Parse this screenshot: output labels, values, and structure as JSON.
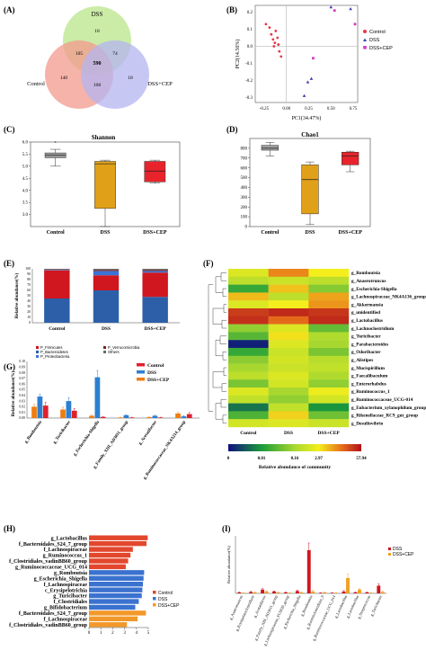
{
  "panels": {
    "A": {
      "label": "(A)",
      "sets": [
        "DSS",
        "Control",
        "DSS+CEP"
      ],
      "regions": {
        "dss_only": "18",
        "ctrl_only": "140",
        "cep_only": "18",
        "dss_ctrl": "105",
        "dss_cep": "74",
        "ctrl_cep": "108",
        "all": "590"
      },
      "colors": {
        "DSS": "#b9e58a",
        "Control": "#f39a8e",
        "DSS+CEP": "#b4b4f0"
      }
    },
    "B": {
      "label": "(B)",
      "xlabel": "PC1(34.47%)",
      "ylabel": "PC2(14.56%)",
      "xticks": [
        "-0.25",
        "0.00",
        "0.25",
        "0.50",
        "0.75"
      ],
      "yticks": [
        "0.2",
        "0.1",
        "0.0",
        "-0.1",
        "-0.2",
        "-0.3"
      ],
      "legend": [
        "Control",
        "DSS",
        "DSS+CEP"
      ],
      "colors": [
        "#e8364a",
        "#3c3cb4",
        "#d23cc8"
      ]
    },
    "C": {
      "label": "(C)",
      "title": "Shannon",
      "yticks": [
        "3.0",
        "3.5",
        "4.0",
        "4.5",
        "5.0",
        "5.5",
        "6.0"
      ],
      "xlabels": [
        "Control",
        "DSS",
        "DSS+CEP"
      ]
    },
    "D": {
      "label": "(D)",
      "title": "Chao1",
      "yticks": [
        "0",
        "100",
        "200",
        "300",
        "400",
        "500",
        "600",
        "700",
        "800"
      ],
      "xlabels": [
        "Control",
        "DSS",
        "DSS+CEP"
      ]
    },
    "E": {
      "label": "(E)",
      "ylabel": "Relative abundance(%)",
      "yticks": [
        "0",
        "10",
        "20",
        "30",
        "40",
        "50",
        "60",
        "70",
        "80",
        "90",
        "100"
      ],
      "xlabels": [
        "Control",
        "DSS",
        "DSS+CEP"
      ],
      "legend": [
        "P_Firmicutes",
        "P_Bacteroidetes",
        "P_Proteobacteria",
        "P_Verrucomicrobia",
        "Others"
      ]
    },
    "F": {
      "label": "(F)",
      "xlabels": [
        "Control",
        "DSS",
        "DSS+CEP"
      ],
      "scale_ticks": [
        "0",
        "0.01",
        "0.16",
        "2.97",
        "57.94"
      ],
      "scale_label": "Relative abundance of community",
      "rows": [
        "g_Romboutsia",
        "g_Anaerotruncus",
        "g_Escherichia-Shigella",
        "g_Lachnospiraceae_NK4A136_group",
        "g_Akkermansia",
        "g_unidentified",
        "g_Lactobacillus",
        "g_Lachnoclostridium",
        "g_Turicibacter",
        "g_Parabacteroides",
        "g_Odoribacter",
        "g_Alistipes",
        "g_Mucispirillum",
        "g_Faecalibaculum",
        "g_Enterorhabdus",
        "g_Ruminococcus_1",
        "g_Ruminococcaceae_UCG-014",
        "g_Eubacterium_xylanophilum_group",
        "g_Rikenellaceae_RC9_gut_group",
        "g_Desulfovibrio"
      ]
    },
    "G": {
      "label": "(G)",
      "ylabel": "Relative abundance(%)",
      "yticks": [
        "0.00",
        "0.01",
        "0.02",
        "0.03",
        "0.04",
        "0.05",
        "0.06",
        "0.07",
        "0.08",
        "0.09",
        "0.10"
      ],
      "legend": [
        "Control",
        "DSS",
        "DSS+CEP"
      ],
      "taxa": [
        "g_Romboutsia",
        "g_Turicibacter",
        "g_Escherichia-Shigella",
        "g_Family_XIII_AD3011_group",
        "g_Acetatifactor",
        "g_Ruminococcaceae_NK4A214_group"
      ]
    },
    "H": {
      "label": "(H)",
      "xticks": [
        "0",
        "1",
        "2",
        "3",
        "4",
        "5"
      ],
      "legend": [
        "Control",
        "DSS",
        "DSS+CEP"
      ],
      "rows": [
        "g_Lactobacillus",
        "f_Bacteroidales_S24_7_group",
        "f_Lachnospiraceae",
        "g_Ruminococcus_1",
        "f_Clostridiales_vadinBB60_group",
        "g_Ruminococcaceae_UCG_014",
        "g_Romboutsia",
        "g_Escherichia_Shigella",
        "f_Lachnospiraceae",
        "c_Erysipelotrichia",
        "g_Turicibacter",
        "f_Clostridiales",
        "g_Bifidobacterium",
        "f_Bacteroidales_S24_7_group",
        "f_Lachnospiraceae",
        "f_Clostridiales_vadinBB60_group"
      ]
    },
    "I": {
      "label": "(I)",
      "ylabel": "Relative abundance(%)",
      "legend": [
        "DSS",
        "DSS+CEP"
      ],
      "taxa": [
        "g_Anaerotruncus",
        "g_Erysipelatoclostridium",
        "g_Acetatifactor",
        "g_Family_XIII_AD3011_group",
        "g_Lachnospiraceae_FCS020_group",
        "g_Escherichia_Shigella",
        "g_Romboutsia",
        "g_Ruminiclostridium_9",
        "g_Ruminococcaceae_UCG_014",
        "g_Lactobacillus",
        "g_Lactobacillus",
        "g_Streptococcus",
        "g_Turicibacter"
      ]
    }
  },
  "chart_data": [
    {
      "type": "venn",
      "panel": "A",
      "sets": [
        "DSS",
        "Control",
        "DSS+CEP"
      ],
      "values": {
        "DSS": 18,
        "Control": 140,
        "DSS+CEP": 18,
        "DSS&Control": 105,
        "DSS&DSS+CEP": 74,
        "Control&DSS+CEP": 108,
        "all": 590
      }
    },
    {
      "type": "scatter",
      "panel": "B",
      "xlabel": "PC1(34.47%)",
      "ylabel": "PC2(14.56%)",
      "xlim": [
        -0.35,
        0.8
      ],
      "ylim": [
        -0.33,
        0.24
      ],
      "series": [
        {
          "name": "Control",
          "x": [
            -0.23,
            -0.19,
            -0.17,
            -0.12,
            -0.15,
            -0.1,
            -0.13,
            -0.09,
            -0.14,
            -0.08,
            -0.06
          ],
          "y": [
            0.13,
            0.11,
            0.07,
            0.09,
            0.04,
            0.05,
            0.02,
            0.01,
            0.0,
            -0.03,
            -0.06
          ]
        },
        {
          "name": "DSS",
          "x": [
            0.5,
            0.72,
            0.28,
            0.24,
            0.2
          ],
          "y": [
            0.23,
            0.22,
            -0.19,
            -0.21,
            -0.29
          ]
        },
        {
          "name": "DSS+CEP",
          "x": [
            0.54,
            0.3,
            0.77
          ],
          "y": [
            0.21,
            -0.07,
            0.13
          ]
        }
      ]
    },
    {
      "type": "box",
      "panel": "C",
      "title": "Shannon",
      "categories": [
        "Control",
        "DSS",
        "DSS+CEP"
      ],
      "ylim": [
        2.5,
        6.0
      ],
      "boxes": [
        {
          "min": 5.0,
          "q1": 5.35,
          "median": 5.45,
          "q3": 5.55,
          "max": 5.7,
          "outliers": [
            6.0
          ]
        },
        {
          "min": 2.5,
          "q1": 3.25,
          "median": 5.1,
          "q3": 5.2,
          "max": 5.25,
          "outliers": []
        },
        {
          "min": 4.3,
          "q1": 4.35,
          "median": 4.8,
          "q3": 5.2,
          "max": 5.25,
          "outliers": []
        }
      ],
      "colors": [
        "#9e9e9e",
        "#e0a018",
        "#e8232b"
      ]
    },
    {
      "type": "box",
      "panel": "D",
      "title": "Chao1",
      "categories": [
        "Control",
        "DSS",
        "DSS+CEP"
      ],
      "ylim": [
        0,
        900
      ],
      "boxes": [
        {
          "min": 720,
          "q1": 780,
          "median": 800,
          "q3": 830,
          "max": 860,
          "outliers": []
        },
        {
          "min": 20,
          "q1": 130,
          "median": 480,
          "q3": 630,
          "max": 660,
          "outliers": []
        },
        {
          "min": 560,
          "q1": 630,
          "median": 720,
          "q3": 760,
          "max": 770,
          "outliers": []
        }
      ],
      "colors": [
        "#9e9e9e",
        "#e0a018",
        "#e8232b"
      ]
    },
    {
      "type": "bar",
      "panel": "E",
      "stacked": true,
      "categories": [
        "Control",
        "DSS",
        "DSS+CEP"
      ],
      "series": [
        {
          "name": "P_Bacteroidetes",
          "values": [
            45,
            60,
            48
          ],
          "color": "#2c5fa8"
        },
        {
          "name": "P_Firmicutes",
          "values": [
            52,
            28,
            45
          ],
          "color": "#d0161f"
        },
        {
          "name": "P_Proteobacteria",
          "values": [
            1,
            8,
            3
          ],
          "color": "#3a73d6"
        },
        {
          "name": "P_Verrucomicrobia",
          "values": [
            1,
            2,
            2
          ],
          "color": "#7a2020"
        },
        {
          "name": "Others",
          "values": [
            1,
            2,
            2
          ],
          "color": "#6b6b6b"
        }
      ]
    },
    {
      "type": "heatmap",
      "panel": "F",
      "columns": [
        "Control",
        "DSS",
        "DSS+CEP"
      ],
      "rows": [
        "g_Romboutsia",
        "g_Anaerotruncus",
        "g_Escherichia-Shigella",
        "g_Lachnospiraceae_NK4A136_group",
        "g_Akkermansia",
        "g_unidentified",
        "g_Lactobacillus",
        "g_Lachnoclostridium",
        "g_Turicibacter",
        "g_Parabacteroides",
        "g_Odoribacter",
        "g_Alistipes",
        "g_Mucispirillum",
        "g_Faecalibaculum",
        "g_Enterorhabdus",
        "g_Ruminococcus_1",
        "g_Ruminococcaceae_UCG-014",
        "g_Eubacterium_xylanophilum_group",
        "g_Rikenellaceae_RC9_gut_group",
        "g_Desulfovibrio"
      ],
      "levels": [
        [
          0.62,
          0.82,
          0.68
        ],
        [
          0.55,
          0.58,
          0.55
        ],
        [
          0.3,
          0.74,
          0.44
        ],
        [
          0.75,
          0.55,
          0.78
        ],
        [
          0.62,
          0.68,
          0.8
        ],
        [
          0.93,
          0.96,
          0.94
        ],
        [
          0.95,
          0.86,
          0.96
        ],
        [
          0.46,
          0.62,
          0.38
        ],
        [
          0.36,
          0.7,
          0.52
        ],
        [
          0.03,
          0.62,
          0.5
        ],
        [
          0.3,
          0.58,
          0.42
        ],
        [
          0.45,
          0.6,
          0.54
        ],
        [
          0.5,
          0.58,
          0.56
        ],
        [
          0.55,
          0.62,
          0.52
        ],
        [
          0.42,
          0.6,
          0.46
        ],
        [
          0.62,
          0.5,
          0.66
        ],
        [
          0.56,
          0.46,
          0.6
        ],
        [
          0.18,
          0.56,
          0.24
        ],
        [
          0.34,
          0.72,
          0.4
        ],
        [
          0.6,
          0.62,
          0.58
        ]
      ]
    },
    {
      "type": "bar",
      "panel": "G",
      "categories": [
        "g_Romboutsia",
        "g_Turicibacter",
        "g_Escherichia-Shigella",
        "g_Family_XIII_AD3011_group",
        "g_Acetatifactor",
        "g_Ruminococcaceae_NK4A214_group"
      ],
      "ylim": [
        0,
        0.1
      ],
      "series": [
        {
          "name": "Control",
          "values": [
            0.02,
            0.015,
            0.004,
            0.001,
            0.0015,
            0.008
          ],
          "errors": [
            0.004,
            0.004,
            0.001,
            0.0005,
            0.0005,
            0.002
          ],
          "color": "#ef7d12"
        },
        {
          "name": "DSS",
          "values": [
            0.038,
            0.03,
            0.072,
            0.005,
            0.004,
            0.003
          ],
          "errors": [
            0.004,
            0.006,
            0.012,
            0.001,
            0.001,
            0.001
          ],
          "color": "#2d7fd0"
        },
        {
          "name": "DSS+CEP",
          "values": [
            0.022,
            0.013,
            0.002,
            0.001,
            0.001,
            0.007
          ],
          "errors": [
            0.006,
            0.004,
            0.001,
            0.0005,
            0.0005,
            0.003
          ],
          "color": "#e0202a"
        }
      ]
    },
    {
      "type": "bar",
      "panel": "H",
      "orientation": "horizontal",
      "xlim": [
        0,
        5
      ],
      "categories": [
        "g_Lactobacillus",
        "f_Bacteroidales_S24_7_group",
        "f_Lachnospiraceae",
        "g_Ruminococcus_1",
        "f_Clostridiales_vadinBB60_group",
        "g_Ruminococcaceae_UCG_014",
        "g_Romboutsia",
        "g_Escherichia_Shigella",
        "f_Lachnospiraceae",
        "c_Erysipelotrichia",
        "g_Turicibacter",
        "f_Clostridiales",
        "g_Bifidobacterium",
        "f_Bacteroidales_S24_7_group",
        "f_Lachnospiraceae",
        "f_Clostridiales_vadinBB60_group"
      ],
      "values": [
        4.95,
        4.85,
        3.7,
        3.5,
        3.3,
        3.1,
        4.65,
        4.6,
        4.55,
        4.5,
        4.45,
        4.2,
        3.9,
        4.8,
        4.1,
        3.2
      ],
      "groups": [
        "Control",
        "Control",
        "Control",
        "Control",
        "Control",
        "Control",
        "DSS",
        "DSS",
        "DSS",
        "DSS",
        "DSS",
        "DSS",
        "DSS",
        "DSS+CEP",
        "DSS+CEP",
        "DSS+CEP"
      ],
      "colors": {
        "Control": "#e2472d",
        "DSS": "#3b72cf",
        "DSS+CEP": "#f2982a"
      }
    },
    {
      "type": "bar",
      "panel": "I",
      "categories": [
        "g_Anaerotruncus",
        "g_Erysipelatoclostridium",
        "g_Acetatifactor",
        "g_Family_XIII_AD3011_group",
        "g_Lachnospiraceae_FCS020_group",
        "g_Escherichia_Shigella",
        "g_Romboutsia",
        "g_Ruminiclostridium_9",
        "g_Ruminococcaceae_UCG_014",
        "g_Lactobacillus",
        "g_Lactobacillus",
        "g_Streptococcus",
        "g_Turicibacter"
      ],
      "ylim": [
        0,
        0.12
      ],
      "series": [
        {
          "name": "DSS",
          "values": [
            0.002,
            0.003,
            0.008,
            0.004,
            0.002,
            0.005,
            0.09,
            0.001,
            0.001,
            0.004,
            0.002,
            0.002,
            0.016
          ],
          "errors": [
            0.001,
            0.001,
            0.002,
            0.001,
            0.001,
            0.002,
            0.015,
            0.0005,
            0.0005,
            0.002,
            0.001,
            0.001,
            0.004
          ],
          "color": "#d0161f"
        },
        {
          "name": "DSS+CEP",
          "values": [
            0.001,
            0.002,
            0.004,
            0.002,
            0.001,
            0.002,
            0.004,
            0.002,
            0.001,
            0.032,
            0.008,
            0.001,
            0.003
          ],
          "errors": [
            0.0005,
            0.001,
            0.001,
            0.001,
            0.0005,
            0.001,
            0.002,
            0.001,
            0.0005,
            0.008,
            0.002,
            0.0005,
            0.001
          ],
          "color": "#f2a020"
        }
      ]
    }
  ]
}
